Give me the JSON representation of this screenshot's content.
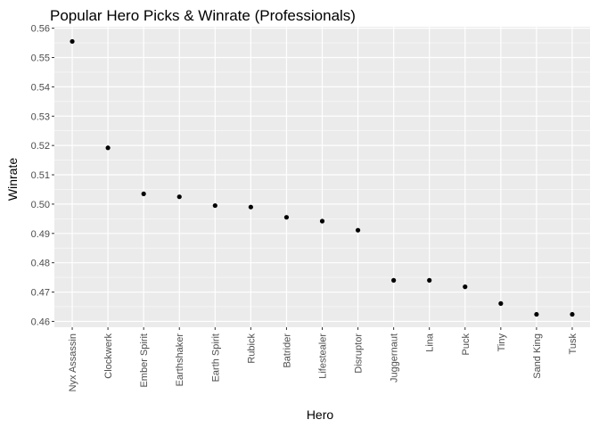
{
  "chart_data": {
    "type": "scatter",
    "title": "Popular Hero Picks & Winrate (Professionals)",
    "xlabel": "Hero",
    "ylabel": "Winrate",
    "categories": [
      "Nyx Assassin",
      "Clockwerk",
      "Ember Spirit",
      "Earthshaker",
      "Earth Spirit",
      "Rubick",
      "Batrider",
      "Lifestealer",
      "Disruptor",
      "Juggernaut",
      "Lina",
      "Puck",
      "Tiny",
      "Sand King",
      "Tusk"
    ],
    "values": [
      0.5555,
      0.5192,
      0.5035,
      0.5025,
      0.4995,
      0.499,
      0.4955,
      0.4942,
      0.4911,
      0.474,
      0.474,
      0.4718,
      0.4661,
      0.4624,
      0.4624
    ],
    "ylim": [
      0.458,
      0.5605
    ],
    "yticks": [
      0.46,
      0.47,
      0.48,
      0.49,
      0.5,
      0.51,
      0.52,
      0.53,
      0.54,
      0.55,
      0.56
    ],
    "ytick_labels": [
      "0.46",
      "0.47",
      "0.48",
      "0.49",
      "0.50",
      "0.51",
      "0.52",
      "0.53",
      "0.54",
      "0.55",
      "0.56"
    ],
    "grid": true,
    "colors": {
      "panel": "#ebebeb",
      "grid": "#ffffff",
      "point": "#000000"
    }
  }
}
